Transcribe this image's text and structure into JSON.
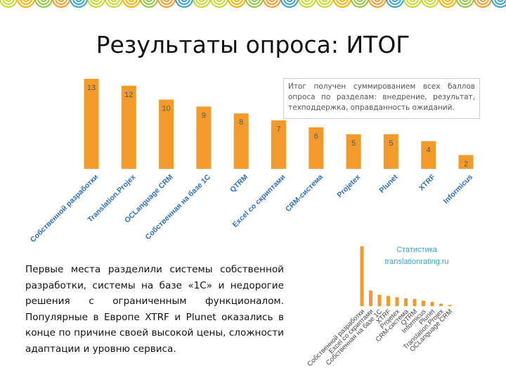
{
  "page": {
    "title": "Результаты опроса: ИТОГ"
  },
  "note": "Итог получен суммированием всех баллов опроса по разделам: внедрение, результат, техподдержка, оправданность ожиданий.",
  "summary": "Первые места разделили системы собственной разработки, системы на базе «1С» и недорогие решения с ограниченным функционалом. Популярные в Европе XTRF и Plunet оказались в конце по причине своей высокой цены, сложности адаптации и уровню сервиса.",
  "colors": {
    "bar": "#f29b2b",
    "bar_dark": "#e08a1e",
    "label": "#595959",
    "category": "#2f6fba",
    "mini_title": "#3aa0c8"
  },
  "banner": {
    "colors": [
      "#c7d72d",
      "#f5b400",
      "#8fc641",
      "#f29b2b",
      "#3aa0c8",
      "#c7d72d"
    ]
  },
  "chart_data": [
    {
      "type": "bar",
      "title": "",
      "categories": [
        "Собственной разработки",
        "Translation.Projex",
        "OCLanguage CRM",
        "Собственная на базе 1С",
        "QTRM",
        "Excel со скриптами",
        "CRM-система",
        "Projetex",
        "Plunet",
        "XTRF",
        "Informicus"
      ],
      "values": [
        13,
        12,
        10,
        9,
        8,
        7,
        6,
        5,
        5,
        4,
        2
      ],
      "ylim": [
        0,
        13
      ],
      "grid": false,
      "legend": false
    },
    {
      "type": "bar",
      "title": "Статистика translationrating.ru",
      "title_lines": [
        "Статистика",
        "translationrating.ru"
      ],
      "categories": [
        "Собственной разработки",
        "Excel со скриптами",
        "Собственная на базе 1С",
        "XTRF",
        "Projetex",
        "CRM-система",
        "QTRM",
        "Informicus",
        "Plunet",
        "Translation.Projex",
        "OCLanguage CRM"
      ],
      "values": [
        100,
        26,
        19,
        17,
        15,
        13,
        12,
        9,
        7,
        4,
        2
      ],
      "grid": false,
      "legend": false
    }
  ]
}
